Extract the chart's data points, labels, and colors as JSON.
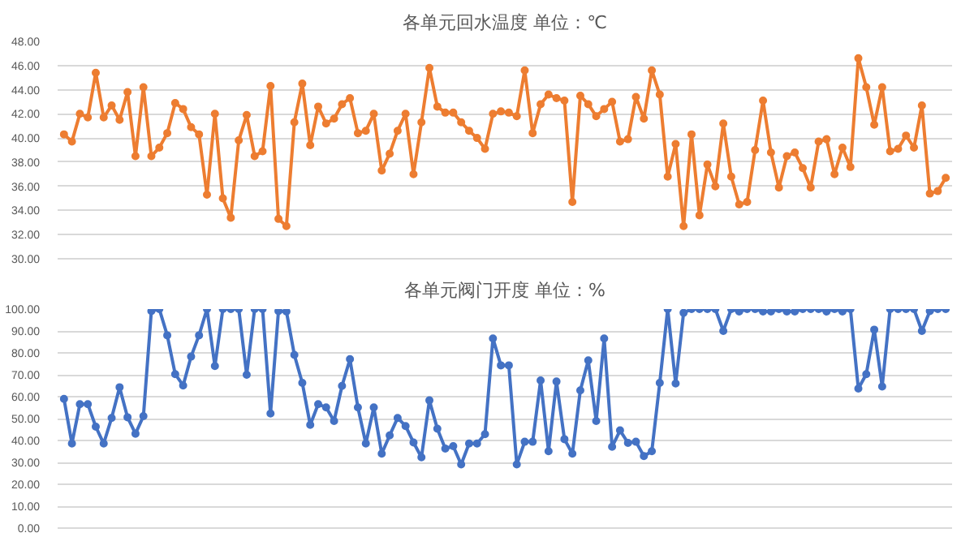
{
  "chart_data": [
    {
      "type": "line",
      "title": "各单元回水温度 单位：℃",
      "categories": [
        null,
        null,
        null,
        null,
        null,
        null,
        null,
        null,
        null,
        null,
        null,
        null,
        null,
        null,
        null,
        null,
        null,
        null,
        null,
        null,
        null,
        null,
        null,
        null,
        null,
        null,
        null,
        null,
        null,
        null,
        null,
        null,
        null,
        null,
        null,
        null,
        null,
        null,
        null,
        null,
        null,
        null,
        null,
        null,
        null,
        null,
        null,
        null,
        null,
        null,
        null,
        null,
        null,
        null,
        null,
        null,
        null,
        null,
        null,
        null,
        null,
        null,
        null,
        null,
        null,
        null,
        null,
        null,
        null,
        null,
        null,
        null,
        null,
        null,
        null,
        null,
        null,
        null,
        null,
        null,
        null,
        null,
        null,
        null,
        null,
        null,
        null,
        null,
        null,
        null,
        null,
        null,
        null,
        null,
        null,
        null,
        null,
        null,
        null,
        null,
        null,
        null,
        null,
        null,
        null,
        null,
        null,
        null,
        null,
        null,
        null,
        null
      ],
      "series": [
        {
          "color": "#ed7d31",
          "values": [
            40.3,
            39.7,
            42.0,
            41.7,
            45.4,
            41.7,
            42.7,
            41.5,
            43.8,
            38.5,
            44.2,
            38.5,
            39.2,
            40.4,
            42.9,
            42.4,
            40.9,
            40.3,
            35.3,
            42.0,
            35.0,
            33.4,
            39.8,
            41.9,
            38.5,
            38.9,
            44.3,
            33.3,
            32.7,
            41.3,
            44.5,
            39.4,
            42.6,
            41.2,
            41.6,
            42.8,
            43.3,
            40.4,
            40.6,
            42.0,
            37.3,
            38.7,
            40.6,
            42.0,
            37.0,
            41.3,
            45.8,
            42.6,
            42.1,
            42.1,
            41.3,
            40.6,
            40.0,
            39.1,
            42.0,
            42.2,
            42.1,
            41.8,
            45.6,
            40.4,
            42.8,
            43.6,
            43.3,
            43.1,
            34.7,
            43.5,
            42.8,
            41.8,
            42.4,
            43.0,
            39.7,
            39.9,
            43.4,
            41.6,
            45.6,
            43.6,
            36.8,
            39.5,
            32.7,
            40.3,
            33.6,
            37.8,
            36.0,
            41.2,
            36.8,
            34.5,
            34.7,
            39.0,
            43.1,
            38.8,
            35.9,
            38.5,
            38.8,
            37.5,
            35.9,
            39.7,
            39.9,
            37.0,
            39.2,
            37.6,
            46.6,
            44.2,
            41.1,
            44.2,
            38.9,
            39.1,
            40.2,
            39.2,
            42.7,
            35.4,
            35.6,
            36.7
          ]
        }
      ],
      "ylim": [
        30,
        48
      ],
      "yticks": [
        {
          "value": 30,
          "label": "30.00"
        },
        {
          "value": 32,
          "label": "32.00"
        },
        {
          "value": 34,
          "label": "34.00"
        },
        {
          "value": 36,
          "label": "36.00"
        },
        {
          "value": 38,
          "label": "38.00"
        },
        {
          "value": 40,
          "label": "40.00"
        },
        {
          "value": 42,
          "label": "42.00"
        },
        {
          "value": 44,
          "label": "44.00"
        },
        {
          "value": 46,
          "label": "46.00"
        },
        {
          "value": 48,
          "label": "48.00"
        }
      ],
      "grid": "y",
      "marker": "circle",
      "line_style": "solid",
      "tick_labels": "y"
    },
    {
      "type": "line",
      "title": "各单元阀门开度 单位：%",
      "categories": [
        null,
        null,
        null,
        null,
        null,
        null,
        null,
        null,
        null,
        null,
        null,
        null,
        null,
        null,
        null,
        null,
        null,
        null,
        null,
        null,
        null,
        null,
        null,
        null,
        null,
        null,
        null,
        null,
        null,
        null,
        null,
        null,
        null,
        null,
        null,
        null,
        null,
        null,
        null,
        null,
        null,
        null,
        null,
        null,
        null,
        null,
        null,
        null,
        null,
        null,
        null,
        null,
        null,
        null,
        null,
        null,
        null,
        null,
        null,
        null,
        null,
        null,
        null,
        null,
        null,
        null,
        null,
        null,
        null,
        null,
        null,
        null,
        null,
        null,
        null,
        null,
        null,
        null,
        null,
        null,
        null,
        null,
        null,
        null,
        null,
        null,
        null,
        null,
        null,
        null,
        null,
        null,
        null,
        null,
        null,
        null,
        null,
        null,
        null,
        null,
        null,
        null,
        null,
        null,
        null,
        null,
        null,
        null,
        null,
        null,
        null,
        null
      ],
      "series": [
        {
          "color": "#4472c4",
          "values": [
            59,
            38.6,
            56.6,
            56.6,
            46.3,
            38.6,
            50.3,
            64.3,
            50.6,
            43.1,
            51.1,
            99.1,
            100,
            88,
            70.3,
            65.1,
            78.3,
            88,
            100,
            74,
            100,
            100,
            100,
            70,
            100,
            100,
            52.3,
            99.1,
            98.9,
            79.1,
            66.3,
            47.1,
            56.6,
            55.1,
            48.9,
            64.9,
            77.1,
            55.1,
            38.6,
            55.1,
            34,
            42.3,
            50.3,
            46.6,
            39.1,
            32.3,
            58.3,
            45.4,
            36.3,
            37.4,
            29.1,
            38.6,
            38.6,
            42.9,
            86.6,
            74.3,
            74.3,
            29.1,
            39.4,
            39.4,
            67.4,
            35.1,
            66.9,
            40.6,
            34,
            62.9,
            76.6,
            48.9,
            86.6,
            37.1,
            44.6,
            38.9,
            39.4,
            32.9,
            35.1,
            66.3,
            100,
            66,
            98.3,
            100,
            100,
            100,
            100,
            90,
            100,
            98.9,
            100,
            100,
            98.9,
            98.9,
            100,
            98.9,
            98.9,
            100,
            100,
            100,
            98.9,
            100,
            98.9,
            100,
            63.7,
            70.3,
            90.6,
            64.6,
            100,
            100,
            100,
            100,
            90,
            99.1,
            100,
            100
          ]
        }
      ],
      "ylim": [
        0,
        100
      ],
      "yticks": [
        {
          "value": 0,
          "label": "0.00"
        },
        {
          "value": 10,
          "label": "10.00"
        },
        {
          "value": 20,
          "label": "20.00"
        },
        {
          "value": 30,
          "label": "30.00"
        },
        {
          "value": 40,
          "label": "40.00"
        },
        {
          "value": 50,
          "label": "50.00"
        },
        {
          "value": 60,
          "label": "60.00"
        },
        {
          "value": 70,
          "label": "70.00"
        },
        {
          "value": 80,
          "label": "80.00"
        },
        {
          "value": 90,
          "label": "90.00"
        },
        {
          "value": 100,
          "label": "100.00"
        }
      ],
      "grid": "y",
      "marker": "circle",
      "line_style": "solid",
      "tick_labels": "y"
    }
  ]
}
